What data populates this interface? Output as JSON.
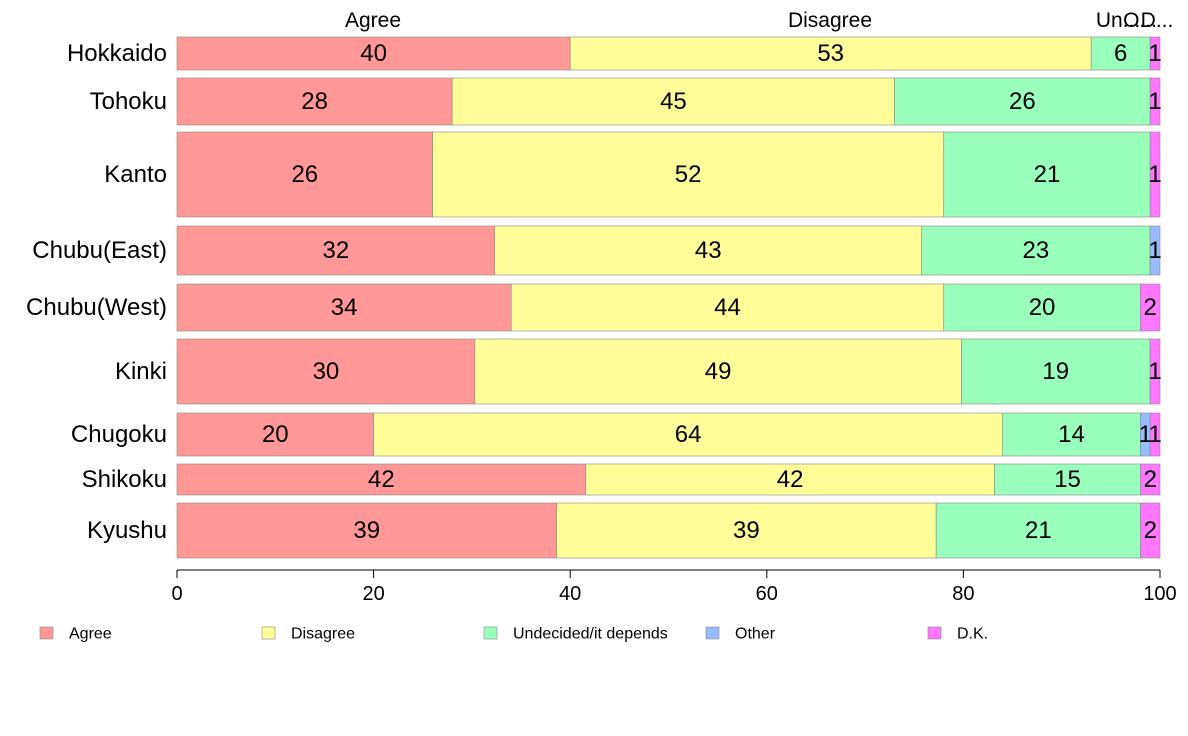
{
  "chart_data": {
    "type": "bar",
    "orientation": "horizontal",
    "stacked": true,
    "categories": [
      "Hokkaido",
      "Tohoku",
      "Kanto",
      "Chubu(East)",
      "Chubu(West)",
      "Kinki",
      "Chugoku",
      "Shikoku",
      "Kyushu"
    ],
    "series": [
      {
        "name": "Agree",
        "color": "#ff9896",
        "values": [
          40,
          28,
          26,
          32,
          34,
          30,
          20,
          42,
          39
        ]
      },
      {
        "name": "Disagree",
        "color": "#ffff99",
        "values": [
          53,
          45,
          52,
          43,
          44,
          49,
          64,
          42,
          39
        ]
      },
      {
        "name": "Undecided/it depends",
        "color": "#99ffbb",
        "values": [
          6,
          26,
          21,
          23,
          20,
          19,
          14,
          15,
          21
        ]
      },
      {
        "name": "Other",
        "color": "#99bbff",
        "values": [
          0,
          0,
          0,
          1,
          0,
          0,
          1,
          0,
          0
        ]
      },
      {
        "name": "D.K.",
        "color": "#ff77ff",
        "values": [
          1,
          1,
          1,
          0,
          2,
          1,
          1,
          2,
          2
        ]
      }
    ],
    "segment_labels": [
      [
        "40",
        "53",
        "6",
        "",
        "1"
      ],
      [
        "28",
        "45",
        "26",
        "",
        "1"
      ],
      [
        "26",
        "52",
        "21",
        "",
        "1"
      ],
      [
        "32",
        "43",
        "23",
        "1",
        ""
      ],
      [
        "34",
        "44",
        "20",
        "",
        "2"
      ],
      [
        "30",
        "49",
        "19",
        "",
        "1"
      ],
      [
        "20",
        "64",
        "14",
        "1",
        "1"
      ],
      [
        "42",
        "42",
        "15",
        "",
        "2"
      ],
      [
        "39",
        "39",
        "21",
        "",
        "2"
      ]
    ],
    "column_headers": [
      "Agree",
      "Disagree",
      "Un...",
      "O...",
      "D..."
    ],
    "xlim": [
      0,
      100
    ],
    "xticks": [
      0,
      20,
      40,
      60,
      80,
      100
    ],
    "xlabel": "",
    "ylabel": "",
    "title": "",
    "grid": false,
    "legend_position": "bottom"
  }
}
